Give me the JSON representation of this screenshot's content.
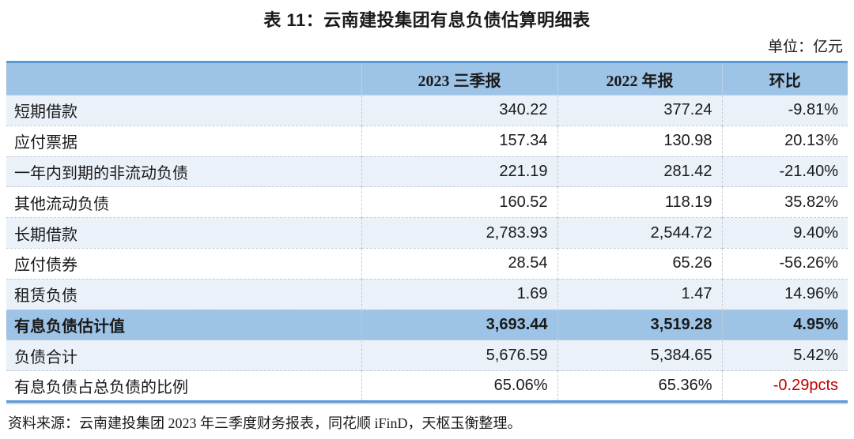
{
  "title": "表 11：云南建投集团有息负债估算明细表",
  "unit_label": "单位：亿元",
  "source": "资料来源：云南建投集团 2023 年三季度财务报表，同花顺 iFinD，天枢玉衡整理。",
  "colors": {
    "header_bg": "#9DC3E6",
    "stripe_bg": "#EAF1F9",
    "highlight_row_bg": "#9DC3E6",
    "border_blue": "#5B9BD5",
    "negative_red": "#C00000",
    "text": "#1a1a1a"
  },
  "chart_data": {
    "type": "table",
    "title": "表 11：云南建投集团有息负债估算明细表",
    "unit": "亿元",
    "columns": [
      "",
      "2023 三季报",
      "2022 年报",
      "环比"
    ],
    "rows": [
      {
        "label": "短期借款",
        "values": [
          "340.22",
          "377.24",
          "-9.81%"
        ]
      },
      {
        "label": "应付票据",
        "values": [
          "157.34",
          "130.98",
          "20.13%"
        ]
      },
      {
        "label": "一年内到期的非流动负债",
        "values": [
          "221.19",
          "281.42",
          "-21.40%"
        ]
      },
      {
        "label": "其他流动负债",
        "values": [
          "160.52",
          "118.19",
          "35.82%"
        ]
      },
      {
        "label": "长期借款",
        "values": [
          "2,783.93",
          "2,544.72",
          "9.40%"
        ]
      },
      {
        "label": "应付债券",
        "values": [
          "28.54",
          "65.26",
          "-56.26%"
        ]
      },
      {
        "label": "租赁负债",
        "values": [
          "1.69",
          "1.47",
          "14.96%"
        ]
      },
      {
        "label": "有息负债估计值",
        "values": [
          "3,693.44",
          "3,519.28",
          "4.95%"
        ]
      },
      {
        "label": "负债合计",
        "values": [
          "5,676.59",
          "5,384.65",
          "5.42%"
        ]
      },
      {
        "label": "有息负债占总负债的比例",
        "values": [
          "65.06%",
          "65.36%",
          "-0.29pcts"
        ]
      }
    ]
  }
}
